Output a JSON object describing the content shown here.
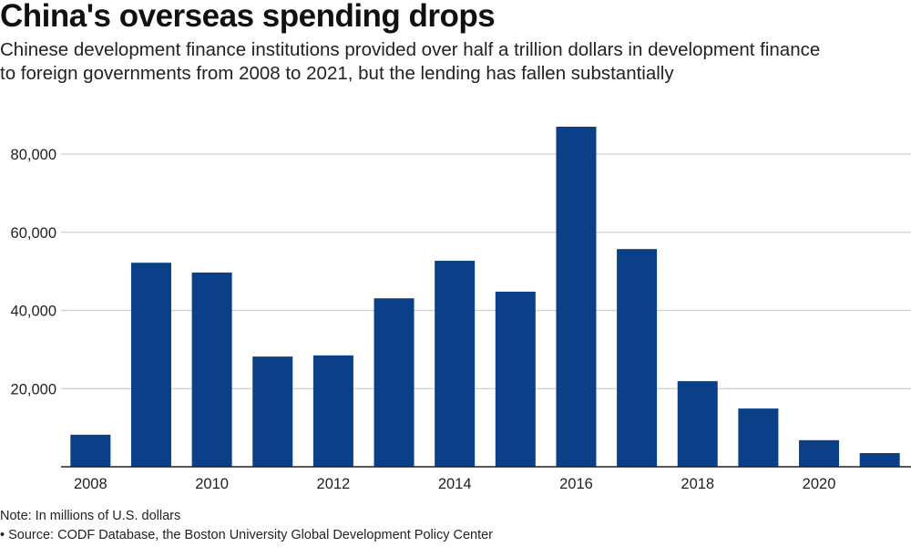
{
  "chart_data": {
    "type": "bar",
    "title": "China's overseas spending drops",
    "subtitle": "Chinese development finance institutions provided over half a trillion dollars in development finance to foreign governments from 2008 to 2021, but the lending has fallen substantially",
    "subtitle_lines": [
      "Chinese development finance institutions provided over half a trillion dollars in development finance",
      "to foreign governments from 2008 to 2021, but the lending has fallen substantially"
    ],
    "categories": [
      "2008",
      "2009",
      "2010",
      "2011",
      "2012",
      "2013",
      "2014",
      "2015",
      "2016",
      "2017",
      "2018",
      "2019",
      "2020",
      "2021"
    ],
    "values": [
      8200,
      52200,
      49700,
      28200,
      28500,
      43100,
      52700,
      44800,
      87000,
      55700,
      21900,
      14900,
      6800,
      3500
    ],
    "xtick_labels": [
      "2008",
      "2010",
      "2012",
      "2014",
      "2016",
      "2018",
      "2020"
    ],
    "ytick_labels": [
      "20,000",
      "40,000",
      "60,000",
      "80,000"
    ],
    "yticks": [
      20000,
      40000,
      60000,
      80000
    ],
    "ylim": [
      0,
      90000
    ],
    "xlabel": "",
    "ylabel": "",
    "grid": true,
    "bar_color": "#0b3f87",
    "note": "Note: In millions of U.S. dollars",
    "source": "• Source: CODF Database, the Boston University Global Development Policy Center"
  }
}
